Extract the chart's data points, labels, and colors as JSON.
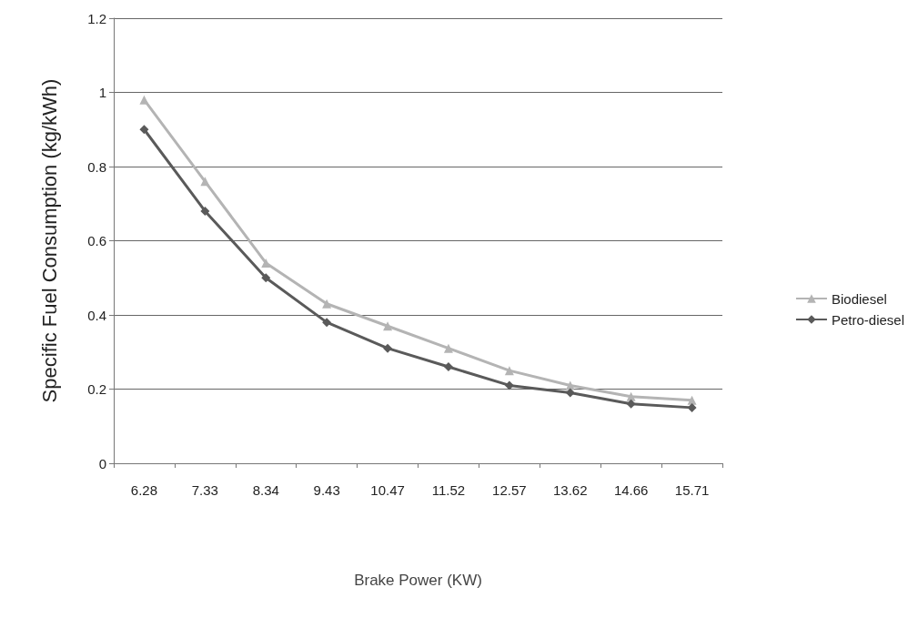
{
  "chart_data": {
    "type": "line",
    "xlabel": "Brake Power (KW)",
    "ylabel": "Specific Fuel Consumption (kg/kWh)",
    "categories": [
      "6.28",
      "7.33",
      "8.34",
      "9.43",
      "10.47",
      "11.52",
      "12.57",
      "13.62",
      "14.66",
      "15.71"
    ],
    "series": [
      {
        "name": "Biodiesel",
        "color": "#b4b4b4",
        "marker": "triangle",
        "values": [
          0.98,
          0.76,
          0.54,
          0.43,
          0.37,
          0.31,
          0.25,
          0.21,
          0.18,
          0.17
        ]
      },
      {
        "name": "Petro-diesel",
        "color": "#5a5a5a",
        "marker": "diamond",
        "values": [
          0.9,
          0.68,
          0.5,
          0.38,
          0.31,
          0.26,
          0.21,
          0.19,
          0.16,
          0.15
        ]
      }
    ],
    "ylim": [
      0,
      1.2
    ],
    "yticks": [
      0,
      0.2,
      0.4,
      0.6,
      0.8,
      1,
      1.2
    ],
    "grid": "y",
    "legend": "right"
  }
}
